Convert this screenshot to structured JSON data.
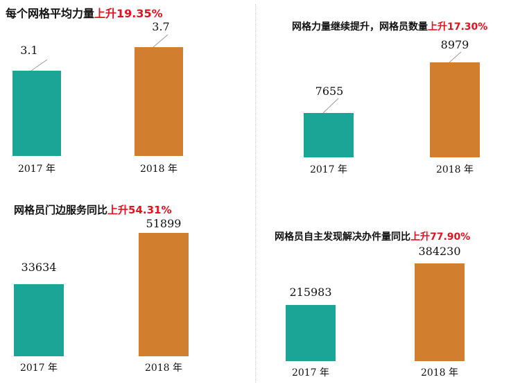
{
  "highlight_color": "#e0141e",
  "colors": [
    "#1aa597",
    "#d17f2e"
  ],
  "chart_data": [
    {
      "type": "bar",
      "title_main": "每个网格平均力量",
      "title_highlight": "上升19.35%",
      "categories": [
        "2017 年",
        "2018 年"
      ],
      "values": [
        3.1,
        3.7
      ],
      "value_labels": [
        "3.1",
        "3.7"
      ]
    },
    {
      "type": "bar",
      "title_main": "网格力量继续提升，网格员数量",
      "title_highlight": "上升17.30%",
      "categories": [
        "2017 年",
        "2018 年"
      ],
      "values": [
        7655,
        8979
      ],
      "value_labels": [
        "7655",
        "8979"
      ]
    },
    {
      "type": "bar",
      "title_main": "网格员门边服务同比",
      "title_highlight": "上升54.31%",
      "categories": [
        "2017 年",
        "2018 年"
      ],
      "values": [
        33634,
        51899
      ],
      "value_labels": [
        "33634",
        "51899"
      ]
    },
    {
      "type": "bar",
      "title_main": "网格员自主发现解决办件量同比",
      "title_highlight": "上升77.90%",
      "categories": [
        "2017 年",
        "2018 年"
      ],
      "values": [
        215983,
        384230
      ],
      "value_labels": [
        "215983",
        "384230"
      ]
    }
  ]
}
